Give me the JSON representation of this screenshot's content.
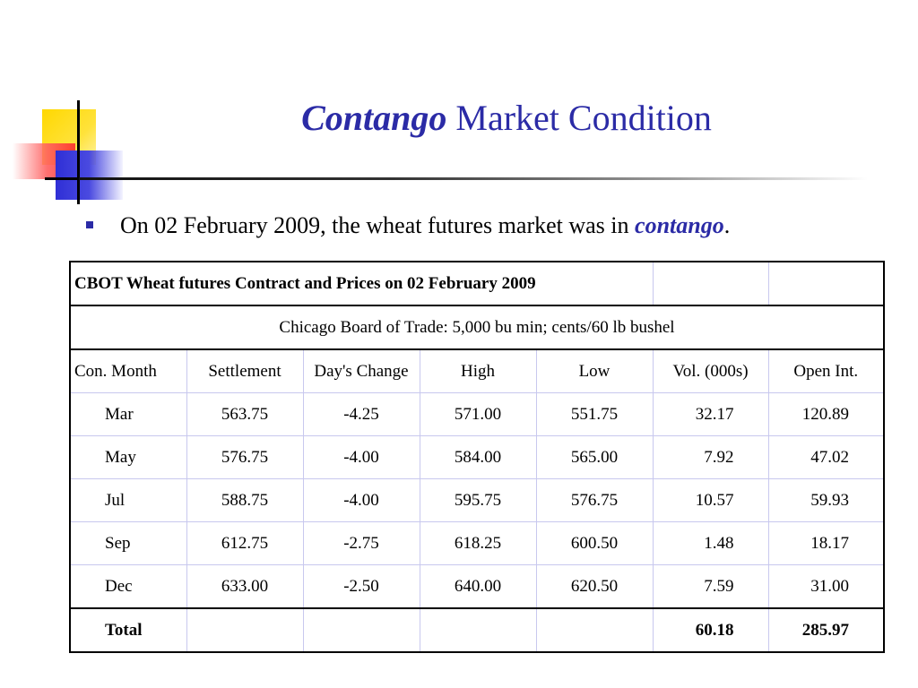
{
  "title": {
    "em": "Contango",
    "rest": " Market Condition"
  },
  "bullet": {
    "text": "On 02 February 2009, the wheat futures market was in ",
    "em": "contango",
    "tail": "."
  },
  "table": {
    "title": "CBOT Wheat futures Contract and Prices on 02 February 2009",
    "subtitle": "Chicago Board of Trade: 5,000 bu min; cents/60 lb bushel",
    "headers": [
      "Con. Month",
      "Settlement",
      "Day's Change",
      "High",
      "Low",
      "Vol. (000s)",
      "Open Int."
    ],
    "rows": [
      {
        "month": "Mar",
        "settlement": "563.75",
        "change": "-4.25",
        "high": "571.00",
        "low": "551.75",
        "vol": "32.17",
        "oi": "120.89"
      },
      {
        "month": "May",
        "settlement": "576.75",
        "change": "-4.00",
        "high": "584.00",
        "low": "565.00",
        "vol": "7.92",
        "oi": "47.02"
      },
      {
        "month": "Jul",
        "settlement": "588.75",
        "change": "-4.00",
        "high": "595.75",
        "low": "576.75",
        "vol": "10.57",
        "oi": "59.93"
      },
      {
        "month": "Sep",
        "settlement": "612.75",
        "change": "-2.75",
        "high": "618.25",
        "low": "600.50",
        "vol": "1.48",
        "oi": "18.17"
      },
      {
        "month": "Dec",
        "settlement": "633.00",
        "change": "-2.50",
        "high": "640.00",
        "low": "620.50",
        "vol": "7.59",
        "oi": "31.00"
      }
    ],
    "total": {
      "label": "Total",
      "vol": "60.18",
      "oi": "285.97"
    }
  },
  "colors": {
    "accent": "#2b2ba6",
    "grid": "#c8c8ee"
  }
}
